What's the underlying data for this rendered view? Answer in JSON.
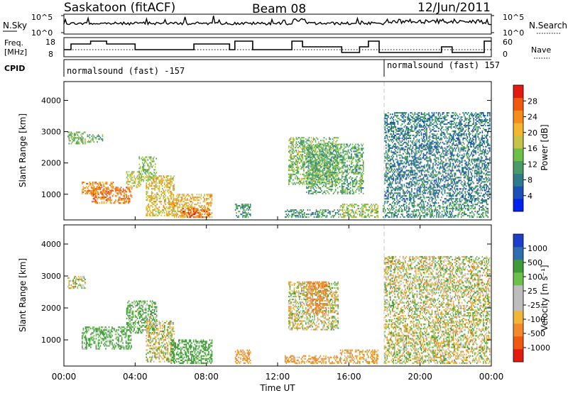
{
  "header": {
    "station": "Saskatoon (fitACF)",
    "beam": "Beam 08",
    "date": "12/Jun/2011"
  },
  "strip": {
    "nsky_label": "N.Sky",
    "nsky_ticks": [
      "10^5",
      "10^0"
    ],
    "nsearch_label": "N.Search",
    "nsearch_ticks": [
      "10^5",
      "10^0"
    ],
    "freq_label_1": "Freq.",
    "freq_label_2": "[MHz]",
    "freq_ticks": [
      "18",
      "8"
    ],
    "nave_label": "Nave",
    "nave_ticks": [
      "60",
      "0"
    ],
    "cpid_label": "CPID",
    "cpid_segments": [
      "normalsound (fast) -157",
      "normalsound (fast) 157"
    ]
  },
  "x_ticks": [
    "00:00",
    "04:00",
    "08:00",
    "12:00",
    "16:00",
    "20:00",
    "00:00"
  ],
  "x_label": "Time UT",
  "colors": {
    "power_scale": [
      "#0022ee",
      "#1d4fb8",
      "#2e7b8c",
      "#4a9a6a",
      "#6cc04a",
      "#c6c24a",
      "#f2b630",
      "#f58d1c",
      "#ef5a10",
      "#e31a10"
    ],
    "velocity_scale": [
      "#e31a10",
      "#f05a10",
      "#f2892a",
      "#f3b43a",
      "#bdbdbd",
      "#bdbdbd",
      "#6cc04a",
      "#3f9a3a",
      "#2e6fb0",
      "#1d3fc8"
    ]
  },
  "chart_data": [
    {
      "type": "heatmap",
      "panel": "power",
      "ylabel": "Slant Range [km]",
      "xlabel": "Time UT",
      "xlim": [
        0,
        24
      ],
      "ylim": [
        180,
        4600
      ],
      "y_ticks": [
        "1000",
        "2000",
        "3000",
        "4000"
      ],
      "colorbar": {
        "label": "Power [dB]",
        "range": [
          0,
          32
        ],
        "ticks": [
          "4",
          "8",
          "12",
          "16",
          "20",
          "24",
          "28"
        ]
      },
      "echo_regions": [
        {
          "t": [
            0.2,
            1.2
          ],
          "r": [
            2600,
            3000
          ],
          "dB": 14
        },
        {
          "t": [
            1.3,
            2.2
          ],
          "r": [
            2650,
            2900
          ],
          "dB": 12
        },
        {
          "t": [
            1.0,
            2.8
          ],
          "r": [
            1000,
            1400
          ],
          "dB": 24
        },
        {
          "t": [
            1.5,
            3.8
          ],
          "r": [
            700,
            1200
          ],
          "dB": 26
        },
        {
          "t": [
            3.5,
            4.3
          ],
          "r": [
            1200,
            1700
          ],
          "dB": 18
        },
        {
          "t": [
            4.2,
            5.2
          ],
          "r": [
            1400,
            2200
          ],
          "dB": 14
        },
        {
          "t": [
            4.6,
            6.2
          ],
          "r": [
            300,
            1600
          ],
          "dB": 20
        },
        {
          "t": [
            6.0,
            8.3
          ],
          "r": [
            250,
            1000
          ],
          "dB": 22
        },
        {
          "t": [
            6.6,
            8.2
          ],
          "r": [
            250,
            550
          ],
          "dB": 28
        },
        {
          "t": [
            9.6,
            10.5
          ],
          "r": [
            250,
            700
          ],
          "dB": 10
        },
        {
          "t": [
            12.4,
            15.5
          ],
          "r": [
            250,
            500
          ],
          "dB": 10
        },
        {
          "t": [
            12.6,
            15.4
          ],
          "r": [
            1300,
            2800
          ],
          "dB": 14
        },
        {
          "t": [
            13.6,
            16.8
          ],
          "r": [
            1000,
            2600
          ],
          "dB": 12
        },
        {
          "t": [
            15.5,
            17.6
          ],
          "r": [
            250,
            700
          ],
          "dB": 16
        },
        {
          "t": [
            17.9,
            23.8
          ],
          "r": [
            250,
            700
          ],
          "dB": 10
        },
        {
          "t": [
            18.0,
            23.9
          ],
          "r": [
            700,
            3600
          ],
          "dB": 8
        }
      ]
    },
    {
      "type": "heatmap",
      "panel": "velocity",
      "ylabel": "Slant Range [km]",
      "xlabel": "Time UT",
      "xlim": [
        0,
        24
      ],
      "ylim": [
        180,
        4600
      ],
      "y_ticks": [
        "1000",
        "2000",
        "3000",
        "4000"
      ],
      "colorbar": {
        "label": "Velocity [m s⁻¹]",
        "ticks": [
          "1000",
          "500",
          "100",
          "25",
          "-25",
          "-100",
          "-500",
          "-1000"
        ]
      },
      "echo_regions": [
        {
          "t": [
            0.2,
            1.2
          ],
          "r": [
            2600,
            3000
          ],
          "v": 0
        },
        {
          "t": [
            1.0,
            3.8
          ],
          "r": [
            700,
            1400
          ],
          "v": 150
        },
        {
          "t": [
            3.5,
            5.2
          ],
          "r": [
            1200,
            2200
          ],
          "v": 120
        },
        {
          "t": [
            4.6,
            6.2
          ],
          "r": [
            300,
            1600
          ],
          "v": 0
        },
        {
          "t": [
            6.0,
            8.3
          ],
          "r": [
            250,
            1000
          ],
          "v": 200
        },
        {
          "t": [
            9.6,
            10.5
          ],
          "r": [
            250,
            700
          ],
          "v": -200
        },
        {
          "t": [
            12.4,
            15.5
          ],
          "r": [
            250,
            500
          ],
          "v": -150
        },
        {
          "t": [
            12.6,
            15.4
          ],
          "r": [
            1300,
            2800
          ],
          "v": 0
        },
        {
          "t": [
            13.6,
            14.8
          ],
          "r": [
            1800,
            2800
          ],
          "v": -400
        },
        {
          "t": [
            15.5,
            17.6
          ],
          "r": [
            250,
            700
          ],
          "v": -100
        },
        {
          "t": [
            18.0,
            23.9
          ],
          "r": [
            250,
            3600
          ],
          "v": 0
        }
      ]
    }
  ]
}
